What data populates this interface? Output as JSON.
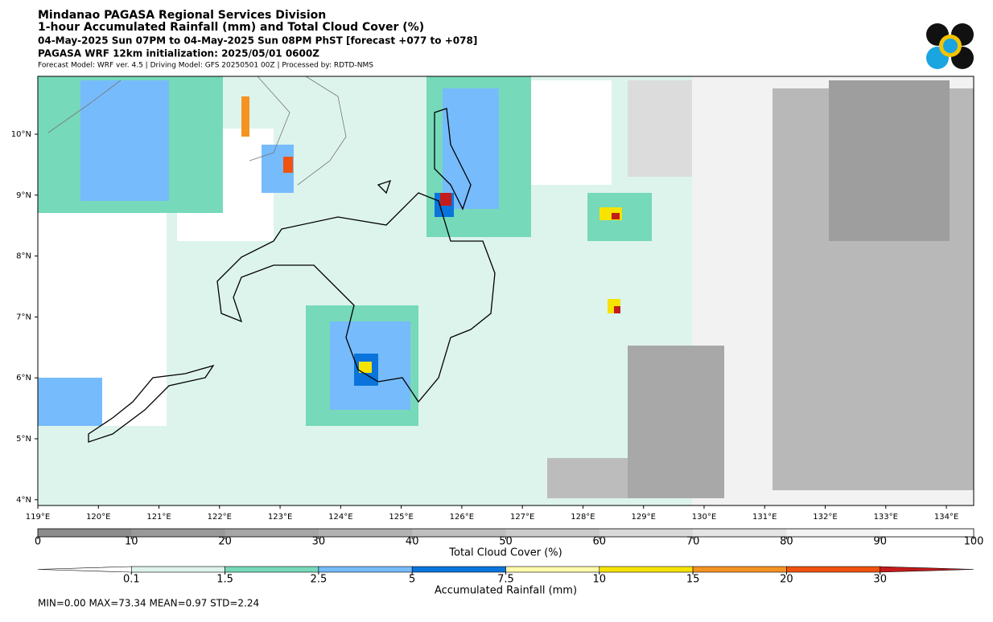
{
  "header": {
    "lines": [
      "Mindanao PAGASA Regional Services Division",
      "1-hour Accumulated Rainfall (mm) and Total Cloud Cover (%)",
      "04-May-2025 Sun 07PM to 04-May-2025 Sun 08PM PhST [forecast +077 to +078]",
      "PAGASA WRF 12km initialization: 2025/05/01 0600Z"
    ],
    "subline": "Forecast Model: WRF ver. 4.5 | Driving Model: GFS 20250501 00Z | Processed by: RDTD-NMS"
  },
  "map": {
    "lat_labels": [
      "10°N",
      "9°N",
      "8°N",
      "7°N",
      "6°N",
      "5°N",
      "4°N"
    ],
    "lon_labels": [
      "119°E",
      "120°E",
      "121°E",
      "122°E",
      "123°E",
      "124°E",
      "125°E",
      "126°E",
      "127°E",
      "128°E",
      "129°E",
      "130°E",
      "131°E",
      "132°E",
      "133°E",
      "134°E"
    ]
  },
  "cloud_colorbar": {
    "label": "Total Cloud Cover (%)",
    "ticks": [
      "0",
      "10",
      "20",
      "30",
      "40",
      "50",
      "60",
      "70",
      "80",
      "90",
      "100"
    ]
  },
  "rain_colorbar": {
    "label": "Accumulated Rainfall (mm)",
    "ticks": [
      "0.1",
      "1.5",
      "2.5",
      "5",
      "7.5",
      "10",
      "15",
      "20",
      "30"
    ],
    "colors": [
      "#ffffff",
      "#ddf4ec",
      "#76d9b9",
      "#76bbfc",
      "#0a74dc",
      "#fffbac",
      "#f7e300",
      "#f59321",
      "#f0530f",
      "#c41b1b"
    ]
  },
  "stats": "MIN=0.00   MAX=73.34   MEAN=0.97   STD=2.24"
}
